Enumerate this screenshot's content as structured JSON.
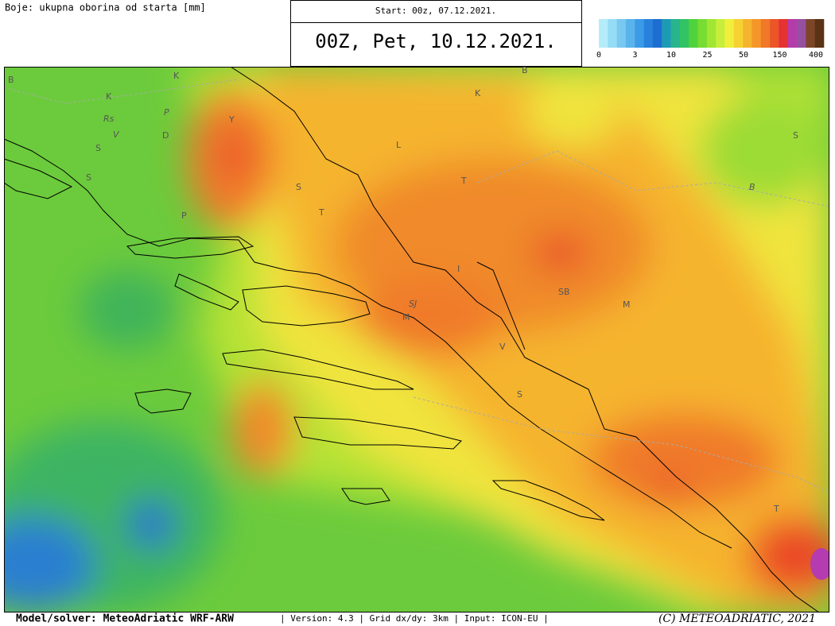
{
  "header": {
    "caption": "Boje: ukupna oborina od starta [mm]",
    "start": "Start: 00z, 07.12.2021.",
    "title": "00Z, Pet, 10.12.2021."
  },
  "colorbar": {
    "colors": [
      "#b4ecfa",
      "#96dcf5",
      "#78c8f0",
      "#5ab4eb",
      "#3c9be6",
      "#2882dc",
      "#1e6ed2",
      "#1e9bb4",
      "#28b48c",
      "#32c364",
      "#50d23c",
      "#78dc32",
      "#a0e632",
      "#c8ee3c",
      "#f0f03c",
      "#f5d232",
      "#f5b42d",
      "#f59628",
      "#f07828",
      "#eb5528",
      "#e63232",
      "#b43caa",
      "#9650a0",
      "#7d4628",
      "#5a3214"
    ],
    "ticks": [
      0,
      3,
      10,
      25,
      50,
      150,
      400
    ]
  },
  "map_labels": [
    "B",
    "K",
    "K",
    "Rs",
    "P",
    "V",
    "D",
    "Y",
    "S",
    "S",
    "P",
    "S",
    "T",
    "L",
    "T",
    "K",
    "B",
    "S",
    "B",
    "I",
    "SB",
    "M",
    "SJ",
    "M",
    "V",
    "S",
    "T"
  ],
  "footer": {
    "model": "Model/solver: MeteoAdriatic WRF-ARW",
    "info": "| Version: 4.3 | Grid dx/dy: 3km | Input: ICON-EU |",
    "copyright": "(C) METEOADRIATIC, 2021"
  }
}
